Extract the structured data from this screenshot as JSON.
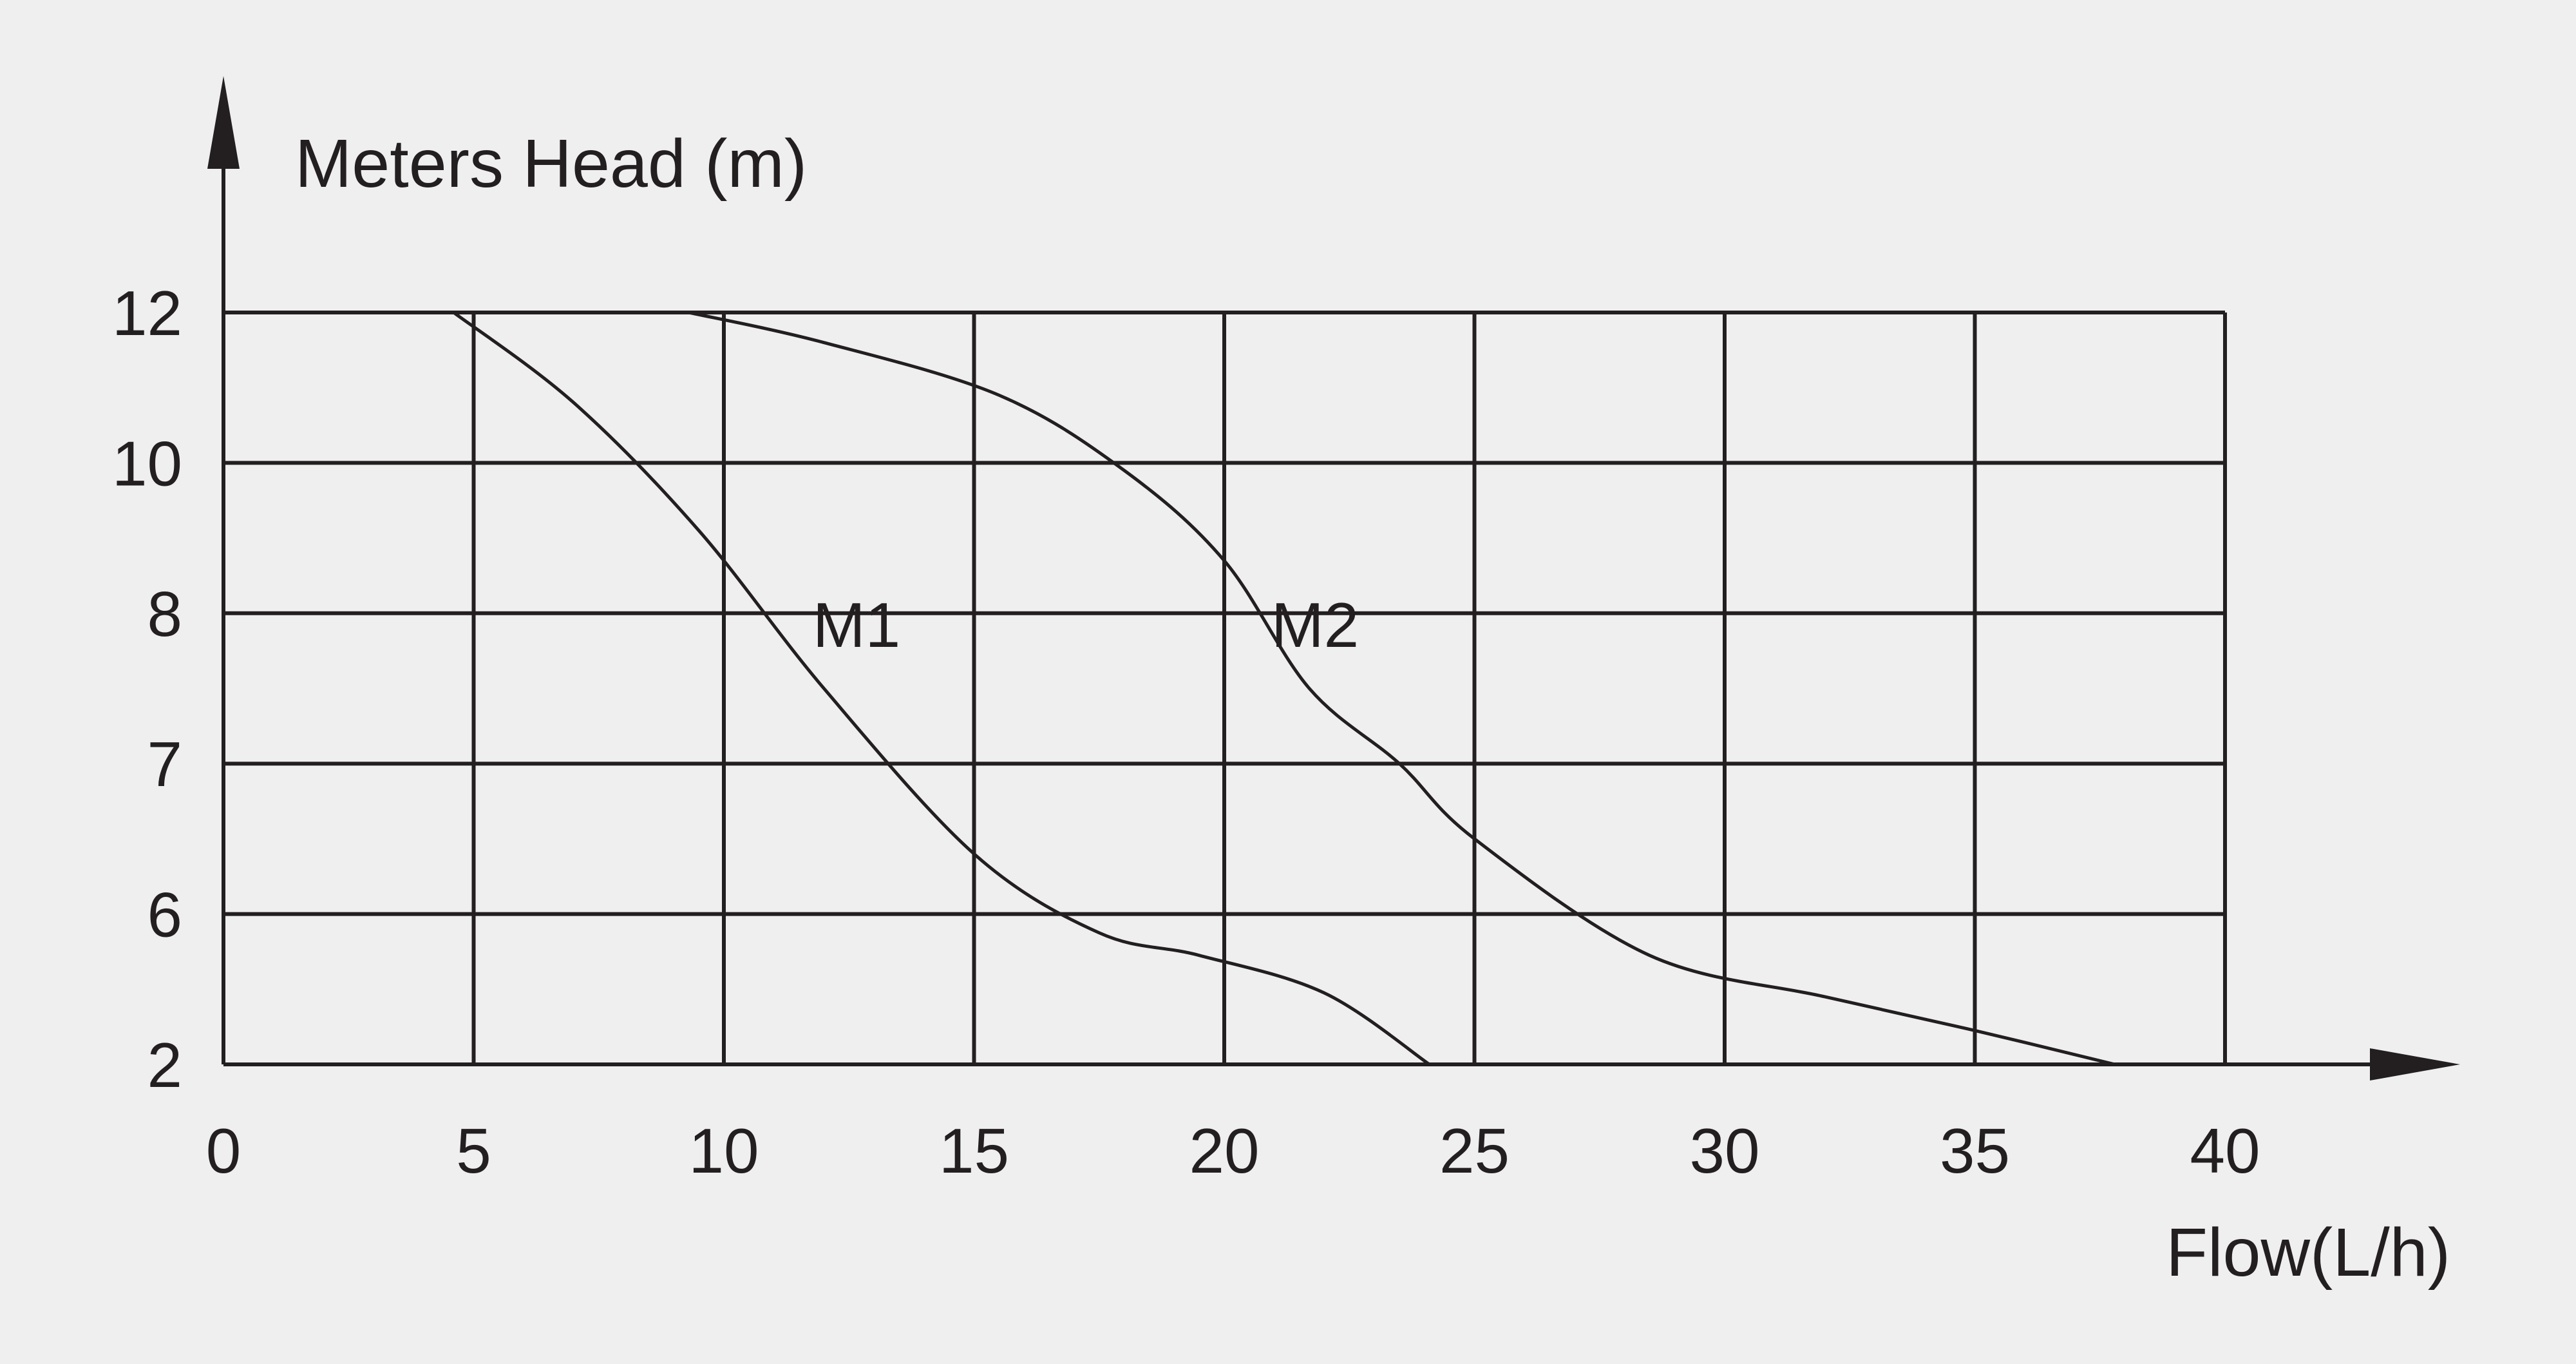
{
  "chart_data": {
    "type": "line",
    "ylabel": "Meters Head (m)",
    "xlabel": "Flow(L/h)",
    "x_ticks": [
      "0",
      "5",
      "10",
      "15",
      "20",
      "25",
      "30",
      "35",
      "40"
    ],
    "y_ticks": [
      "2",
      "6",
      "7",
      "8",
      "10",
      "12"
    ],
    "xlim": [
      0,
      40
    ],
    "grid": true,
    "colors": {
      "line": "#231f20",
      "background": "#efefef"
    },
    "series": [
      {
        "name": "M1",
        "x": [
          4.6,
          7.0,
          9.5,
          12.0,
          15.0,
          17.5,
          19.5,
          22.0,
          24.1
        ],
        "y": [
          12,
          10.8,
          9.1,
          7.5,
          6.4,
          5.5,
          4.9,
          3.9,
          2.0
        ]
      },
      {
        "name": "M2",
        "x": [
          9.3,
          12.0,
          15.5,
          18.0,
          20.0,
          21.7,
          23.5,
          25.0,
          28.5,
          32.0,
          35.0,
          37.8
        ],
        "y": [
          12,
          11.6,
          10.9,
          9.9,
          8.7,
          7.5,
          7.0,
          6.5,
          4.9,
          3.8,
          2.9,
          2.0
        ]
      }
    ]
  }
}
